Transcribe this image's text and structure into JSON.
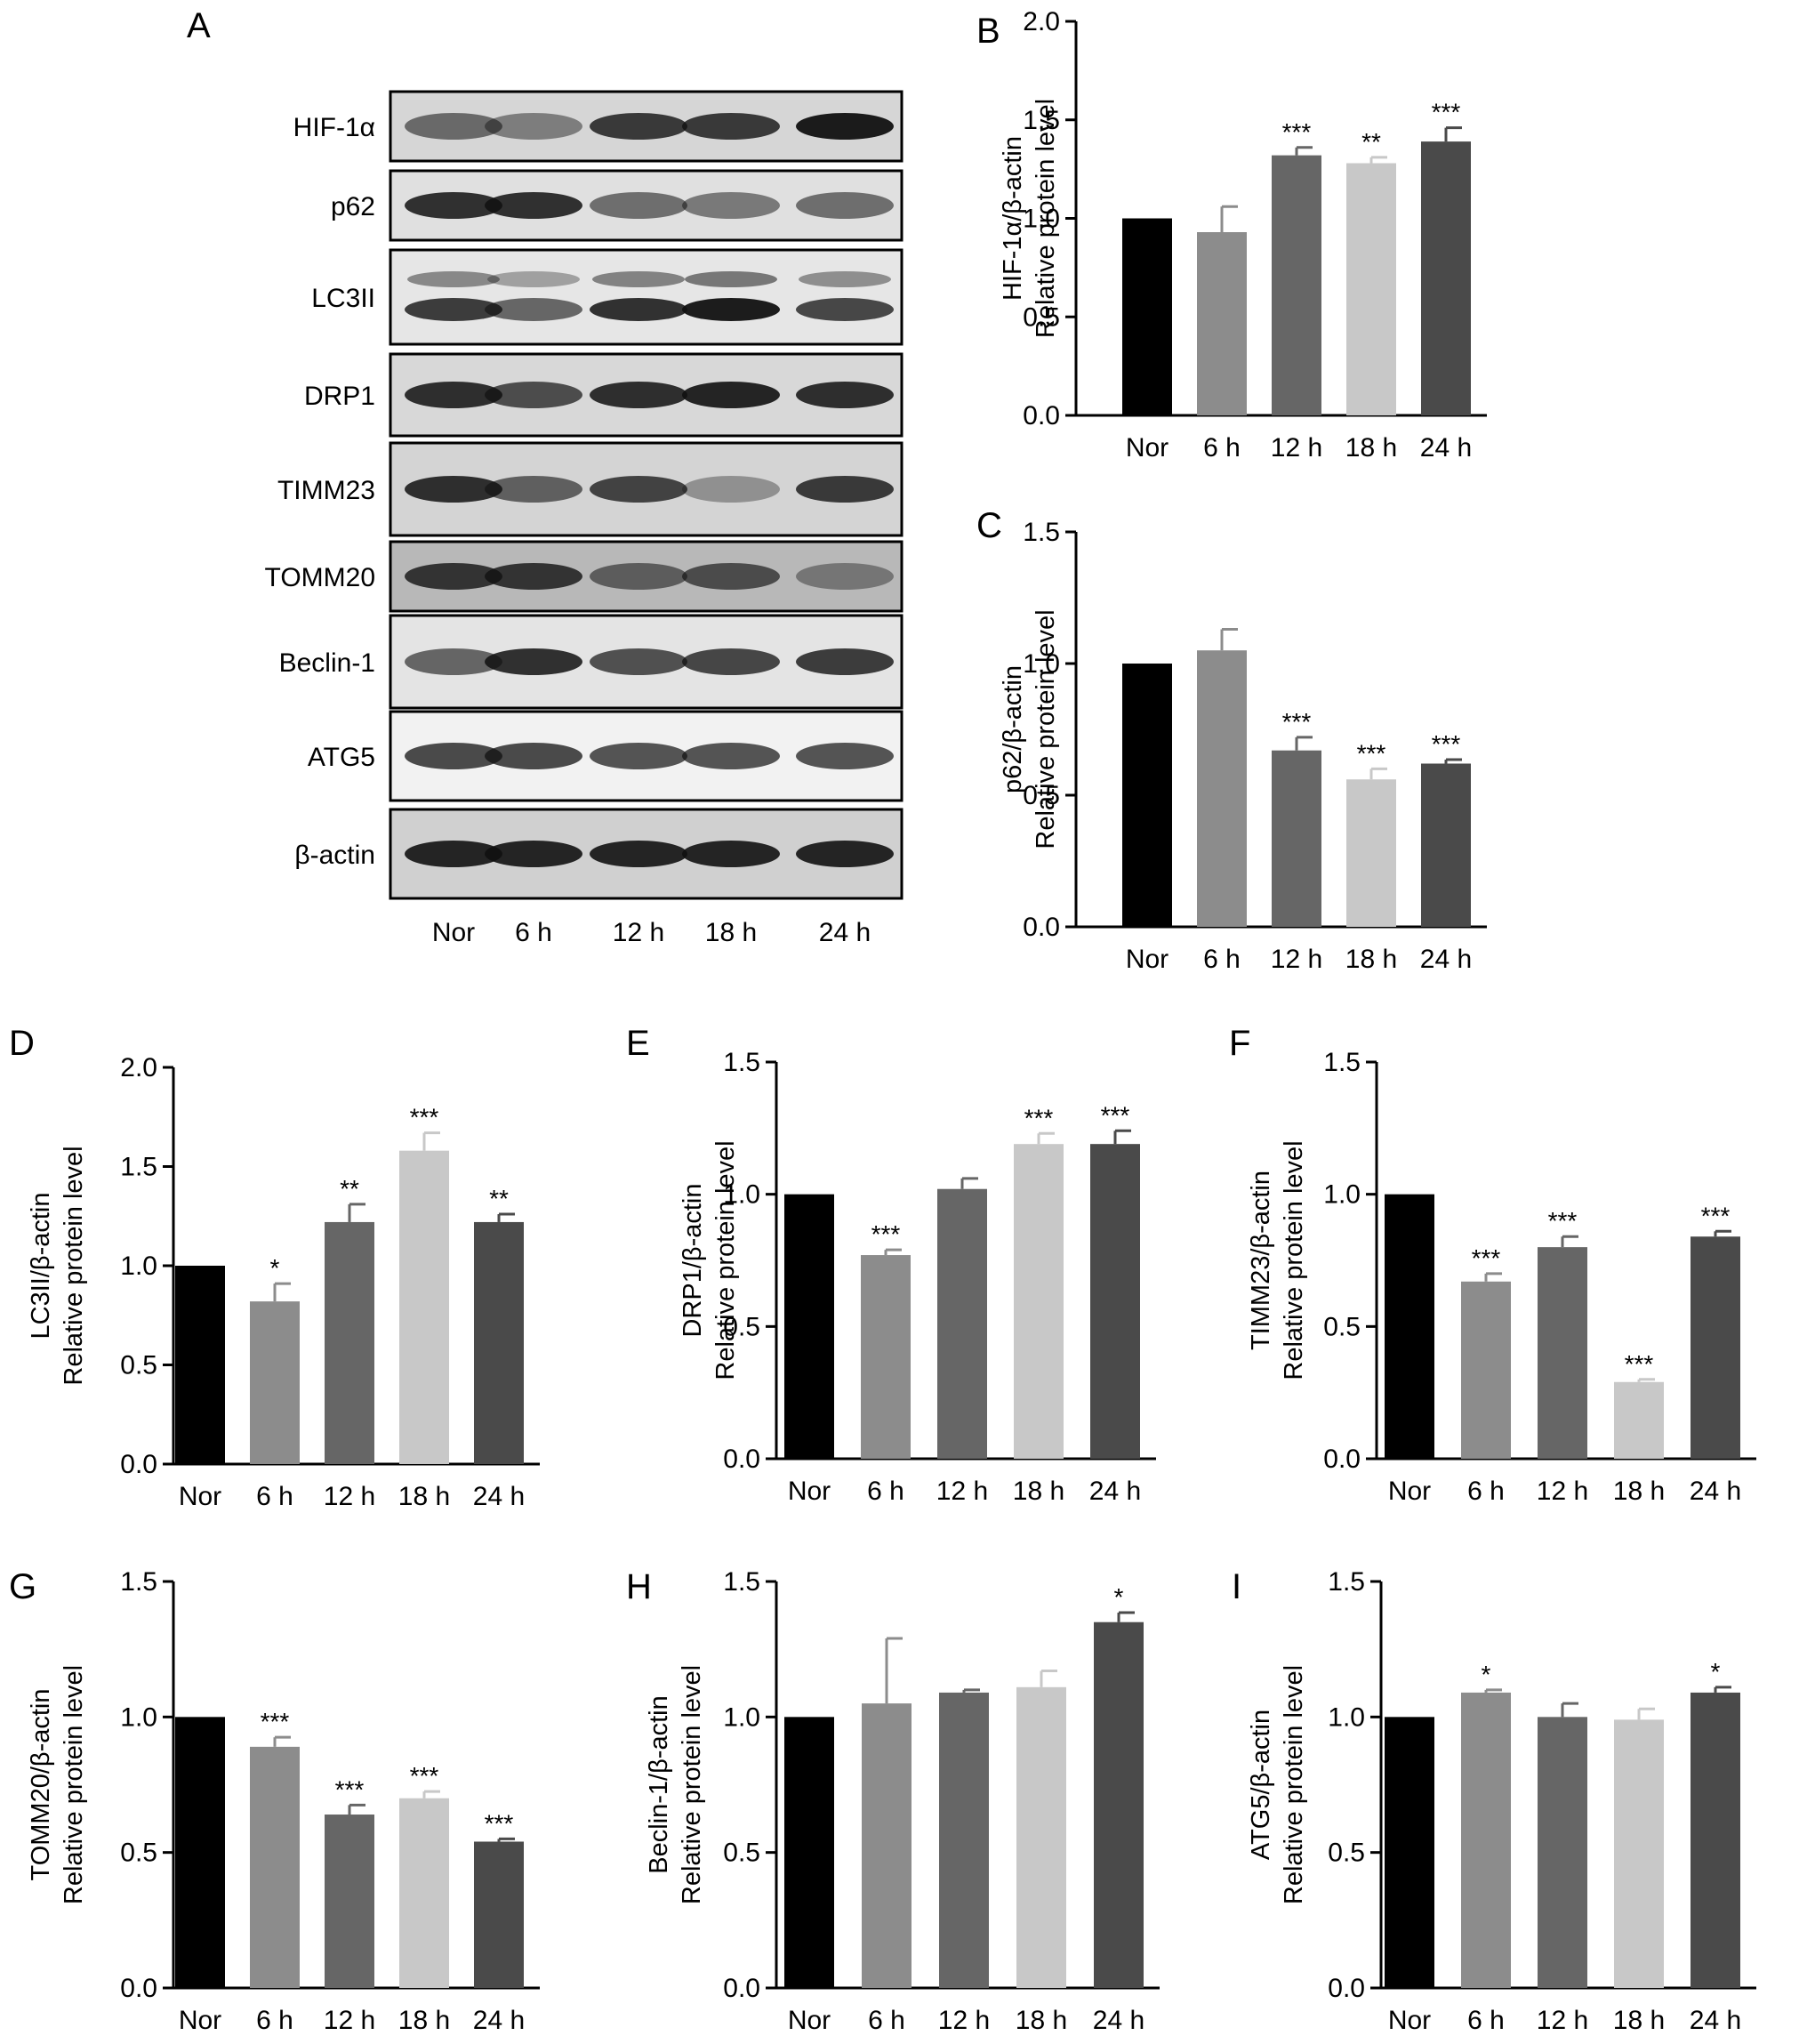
{
  "blot": {
    "panel_letter": "A",
    "proteins": [
      "HIF-1α",
      "p62",
      "LC3II",
      "DRP1",
      "TIMM23",
      "TOMM20",
      "Beclin-1",
      "ATG5",
      "β-actin"
    ],
    "lanes": [
      "Nor",
      "6 h",
      "12 h",
      "18 h",
      "24 h"
    ]
  },
  "chart_data": [
    {
      "panel": "B",
      "type": "bar",
      "categories": [
        "Nor",
        "6 h",
        "12 h",
        "18 h",
        "24 h"
      ],
      "values": [
        1.0,
        0.93,
        1.32,
        1.28,
        1.39
      ],
      "errors": [
        0,
        0.13,
        0.04,
        0.03,
        0.07
      ],
      "significance": [
        "",
        "",
        "***",
        "**",
        "***"
      ],
      "ylabel": [
        "HIF-1α/β-actin",
        "Relative protein level"
      ],
      "ylim": [
        0,
        2.0
      ],
      "yticks": [
        "0.0",
        "0.5",
        "1.0",
        "1.5",
        "2.0"
      ],
      "colors": [
        "#000000",
        "#8c8c8c",
        "#666666",
        "#c8c8c8",
        "#4a4a4a"
      ]
    },
    {
      "panel": "C",
      "type": "bar",
      "categories": [
        "Nor",
        "6 h",
        "12 h",
        "18 h",
        "24 h"
      ],
      "values": [
        1.0,
        1.05,
        0.67,
        0.56,
        0.62
      ],
      "errors": [
        0,
        0.08,
        0.05,
        0.04,
        0.015
      ],
      "significance": [
        "",
        "",
        "***",
        "***",
        "***"
      ],
      "ylabel": [
        "p62/β-actin",
        "Relative protein level"
      ],
      "ylim": [
        0,
        1.5
      ],
      "yticks": [
        "0.0",
        "0.5",
        "1.0",
        "1.5"
      ],
      "colors": [
        "#000000",
        "#8c8c8c",
        "#666666",
        "#c8c8c8",
        "#4a4a4a"
      ]
    },
    {
      "panel": "D",
      "type": "bar",
      "categories": [
        "Nor",
        "6 h",
        "12 h",
        "18 h",
        "24 h"
      ],
      "values": [
        1.0,
        0.82,
        1.22,
        1.58,
        1.22
      ],
      "errors": [
        0,
        0.09,
        0.09,
        0.09,
        0.04
      ],
      "significance": [
        "",
        "*",
        "**",
        "***",
        "**"
      ],
      "ylabel": [
        "LC3II/β-actin",
        "Relative protein level"
      ],
      "ylim": [
        0,
        2.0
      ],
      "yticks": [
        "0.0",
        "0.5",
        "1.0",
        "1.5",
        "2.0"
      ],
      "colors": [
        "#000000",
        "#8c8c8c",
        "#666666",
        "#c8c8c8",
        "#4a4a4a"
      ]
    },
    {
      "panel": "E",
      "type": "bar",
      "categories": [
        "Nor",
        "6 h",
        "12 h",
        "18 h",
        "24 h"
      ],
      "values": [
        1.0,
        0.77,
        1.02,
        1.19,
        1.19
      ],
      "errors": [
        0,
        0.02,
        0.04,
        0.04,
        0.05
      ],
      "significance": [
        "",
        "***",
        "",
        "***",
        "***"
      ],
      "ylabel": [
        "DRP1/β-actin",
        "Relative protein level"
      ],
      "ylim": [
        0,
        1.5
      ],
      "yticks": [
        "0.0",
        "0.5",
        "1.0",
        "1.5"
      ],
      "colors": [
        "#000000",
        "#8c8c8c",
        "#666666",
        "#c8c8c8",
        "#4a4a4a"
      ]
    },
    {
      "panel": "F",
      "type": "bar",
      "categories": [
        "Nor",
        "6 h",
        "12 h",
        "18 h",
        "24 h"
      ],
      "values": [
        1.0,
        0.67,
        0.8,
        0.29,
        0.84
      ],
      "errors": [
        0,
        0.03,
        0.04,
        0.01,
        0.02
      ],
      "significance": [
        "",
        "***",
        "***",
        "***",
        "***"
      ],
      "ylabel": [
        "TIMM23/β-actin",
        "Relative protein level"
      ],
      "ylim": [
        0,
        1.5
      ],
      "yticks": [
        "0.0",
        "0.5",
        "1.0",
        "1.5"
      ],
      "colors": [
        "#000000",
        "#8c8c8c",
        "#666666",
        "#c8c8c8",
        "#4a4a4a"
      ]
    },
    {
      "panel": "G",
      "type": "bar",
      "categories": [
        "Nor",
        "6 h",
        "12 h",
        "18 h",
        "24 h"
      ],
      "values": [
        1.0,
        0.89,
        0.64,
        0.7,
        0.54
      ],
      "errors": [
        0,
        0.035,
        0.035,
        0.025,
        0.01
      ],
      "significance": [
        "",
        "***",
        "***",
        "***",
        "***"
      ],
      "ylabel": [
        "TOMM20/β-actin",
        "Relative protein level"
      ],
      "ylim": [
        0,
        1.5
      ],
      "yticks": [
        "0.0",
        "0.5",
        "1.0",
        "1.5"
      ],
      "colors": [
        "#000000",
        "#8c8c8c",
        "#666666",
        "#c8c8c8",
        "#4a4a4a"
      ]
    },
    {
      "panel": "H",
      "type": "bar",
      "categories": [
        "Nor",
        "6 h",
        "12 h",
        "18 h",
        "24 h"
      ],
      "values": [
        1.0,
        1.05,
        1.09,
        1.11,
        1.35
      ],
      "errors": [
        0,
        0.24,
        0.01,
        0.06,
        0.035
      ],
      "significance": [
        "",
        "",
        "",
        "",
        "*"
      ],
      "ylabel": [
        "Beclin-1/β-actin",
        "Relative protein level"
      ],
      "ylim": [
        0,
        1.5
      ],
      "yticks": [
        "0.0",
        "0.5",
        "1.0",
        "1.5"
      ],
      "colors": [
        "#000000",
        "#8c8c8c",
        "#666666",
        "#c8c8c8",
        "#4a4a4a"
      ]
    },
    {
      "panel": "I",
      "type": "bar",
      "categories": [
        "Nor",
        "6 h",
        "12 h",
        "18 h",
        "24 h"
      ],
      "values": [
        1.0,
        1.09,
        1.0,
        0.99,
        1.09
      ],
      "errors": [
        0,
        0.01,
        0.05,
        0.04,
        0.02
      ],
      "significance": [
        "",
        "*",
        "",
        "",
        "*"
      ],
      "ylabel": [
        "ATG5/β-actin",
        "Relative protein level"
      ],
      "ylim": [
        0,
        1.5
      ],
      "yticks": [
        "0.0",
        "0.5",
        "1.0",
        "1.5"
      ],
      "colors": [
        "#000000",
        "#8c8c8c",
        "#666666",
        "#c8c8c8",
        "#4a4a4a"
      ]
    }
  ]
}
